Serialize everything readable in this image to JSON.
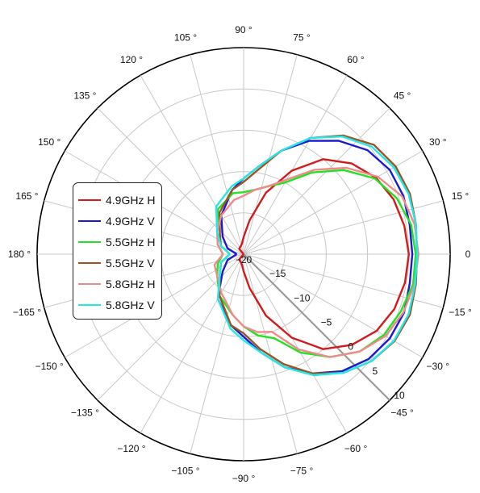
{
  "chart_data": {
    "type": "line",
    "subtype": "polar",
    "angle_unit": "degrees",
    "angle_ticks": [
      90,
      105,
      120,
      135,
      150,
      165,
      180,
      -165,
      -150,
      -135,
      -120,
      -105,
      -90,
      -75,
      -60,
      -45,
      -30,
      -15,
      0,
      15,
      30,
      45,
      60,
      75
    ],
    "angle_tick_labels": [
      "90 °",
      "105 °",
      "120 °",
      "135 °",
      "150 °",
      "165 °",
      "180 °",
      "−165 °",
      "−150 °",
      "−135 °",
      "−120 °",
      "−105 °",
      "−90 °",
      "−75 °",
      "−60 °",
      "−45 °",
      "−30 °",
      "−15 °",
      "0",
      "15 °",
      "30 °",
      "45 °",
      "60 °",
      "75 °"
    ],
    "rlim": [
      -20,
      10
    ],
    "r_ticks": [
      -20,
      -15,
      -10,
      -5,
      0,
      5,
      10
    ],
    "r_tick_labels": [
      "−20",
      "−15",
      "−10",
      "−5",
      "0",
      "5",
      "10"
    ],
    "radial_label_angle": -45,
    "grid": true,
    "legend_position": "left",
    "series": [
      {
        "name": "4.9GHz H",
        "color": "#d41a1a",
        "theta": [
          -180,
          -150,
          -130,
          -100,
          -90,
          -80,
          -70,
          -60,
          -50,
          -40,
          -30,
          -20,
          -10,
          0,
          10,
          20,
          30,
          40,
          50,
          60,
          70,
          80,
          90,
          100,
          130,
          150,
          180
        ],
        "r": [
          -20,
          -20,
          -19,
          -18.5,
          -17.5,
          -15,
          -10.5,
          -6,
          -2,
          0.5,
          2.3,
          3.3,
          3.8,
          4,
          3.7,
          3.2,
          2.2,
          0.5,
          -2,
          -6,
          -10.5,
          -15,
          -17.5,
          -18.5,
          -19,
          -20,
          -20
        ]
      },
      {
        "name": "4.9GHz V",
        "color": "#1a1ad2",
        "theta": [
          -180,
          -160,
          -140,
          -120,
          -100,
          -90,
          -80,
          -70,
          -60,
          -50,
          -40,
          -30,
          -20,
          -10,
          0,
          10,
          20,
          30,
          40,
          50,
          60,
          70,
          80,
          90,
          100,
          120,
          140,
          160,
          180
        ],
        "r": [
          -19,
          -17.5,
          -16,
          -12.5,
          -9.5,
          -8,
          -5.5,
          -2.5,
          0,
          2.2,
          3.7,
          4.5,
          4.8,
          4.5,
          4.5,
          4.5,
          4.7,
          4.5,
          3.5,
          1.5,
          -1,
          -4,
          -7,
          -9,
          -10.5,
          -13.5,
          -16,
          -17.5,
          -19
        ]
      },
      {
        "name": "5.5GHz H",
        "color": "#22e322",
        "theta": [
          -180,
          -160,
          -140,
          -120,
          -100,
          -90,
          -80,
          -70,
          -60,
          -50,
          -40,
          -30,
          -20,
          -10,
          0,
          10,
          20,
          30,
          40,
          50,
          60,
          70,
          80,
          90,
          100,
          120,
          140,
          160,
          180
        ],
        "r": [
          -17,
          -16,
          -15,
          -13,
          -11,
          -9.5,
          -8,
          -7,
          -3.5,
          -0.5,
          2,
          3.5,
          4.3,
          5,
          5,
          4.7,
          3.7,
          2,
          -1,
          -4.5,
          -8,
          -9.5,
          -10.5,
          -11,
          -11,
          -12.5,
          -15,
          -16,
          -17
        ]
      },
      {
        "name": "5.5GHz V",
        "color": "#9b5522",
        "theta": [
          -180,
          -160,
          -140,
          -120,
          -100,
          -90,
          -80,
          -70,
          -60,
          -50,
          -40,
          -30,
          -20,
          -10,
          0,
          10,
          20,
          30,
          40,
          50,
          60,
          70,
          80,
          90,
          100,
          120,
          140,
          160,
          180
        ],
        "r": [
          -18,
          -16.5,
          -15.5,
          -13,
          -9.5,
          -8.5,
          -6,
          -3,
          0,
          2.5,
          4.2,
          5.3,
          5.7,
          5.4,
          5.2,
          5.4,
          5.7,
          5.5,
          4.7,
          2.5,
          -0.5,
          -4,
          -7.5,
          -9.5,
          -10.5,
          -13,
          -15.5,
          -16.5,
          -18
        ]
      },
      {
        "name": "5.8GHz H",
        "color": "#f08a8a",
        "theta": [
          -180,
          -160,
          -140,
          -120,
          -100,
          -90,
          -80,
          -70,
          -60,
          -50,
          -40,
          -30,
          -20,
          -10,
          0,
          10,
          20,
          30,
          40,
          50,
          60,
          70,
          80,
          90,
          100,
          120,
          140,
          160,
          180
        ],
        "r": [
          -17,
          -15.5,
          -15,
          -13.5,
          -11,
          -9.5,
          -8.5,
          -8,
          -4,
          -0.5,
          2,
          3.8,
          4.7,
          5.2,
          5.4,
          5.2,
          4.5,
          2.5,
          -0.5,
          -4,
          -7.5,
          -9.5,
          -10.5,
          -11.5,
          -12,
          -13.5,
          -15,
          -16,
          -17
        ]
      },
      {
        "name": "5.8GHz V",
        "color": "#22e8e8",
        "theta": [
          -180,
          -160,
          -140,
          -120,
          -100,
          -90,
          -80,
          -70,
          -60,
          -50,
          -40,
          -30,
          -20,
          -10,
          0,
          10,
          20,
          30,
          40,
          50,
          60,
          70,
          80,
          90,
          100,
          120,
          140,
          160,
          180
        ],
        "r": [
          -18,
          -16.5,
          -15.5,
          -12.5,
          -9,
          -7.5,
          -5.5,
          -2.5,
          0.3,
          2.5,
          4.2,
          5.2,
          5.5,
          5.3,
          5.2,
          5.4,
          5.5,
          5.2,
          4.3,
          2.3,
          -0.5,
          -4,
          -7,
          -9,
          -10,
          -12,
          -15,
          -16.5,
          -18
        ]
      }
    ]
  }
}
